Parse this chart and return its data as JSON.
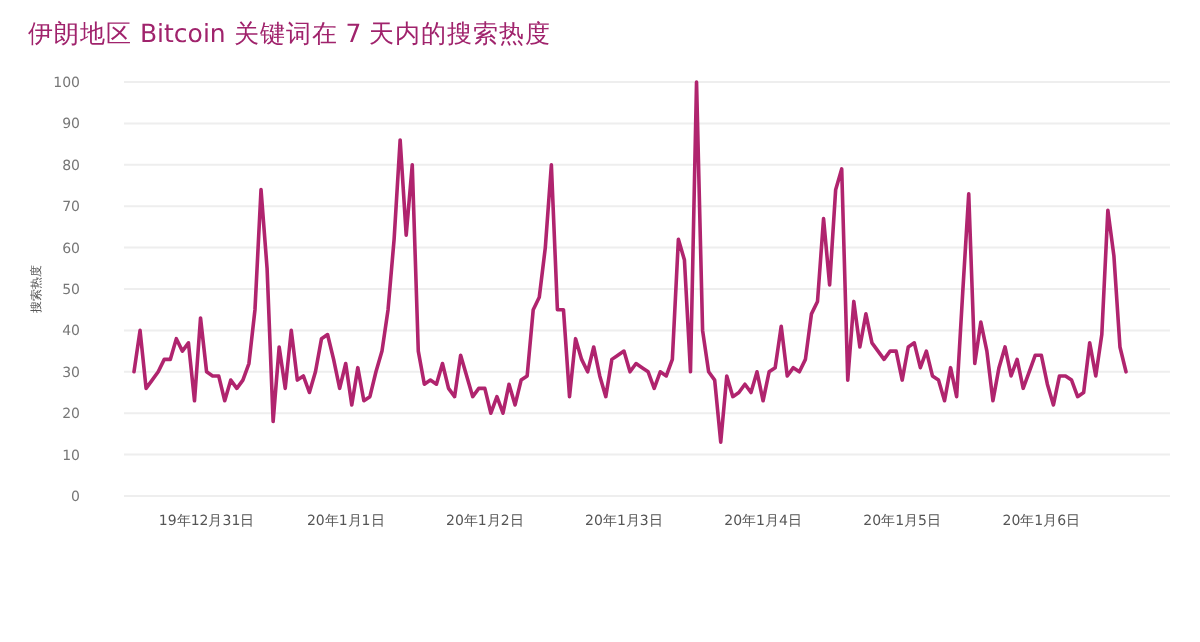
{
  "chart_data": {
    "type": "line",
    "title": "伊朗地区 Bitcoin 关键词在 7 天内的搜索热度",
    "ylabel": "搜索热度",
    "categories": [
      null,
      null,
      null,
      null,
      null,
      null,
      null,
      null,
      null,
      null,
      null,
      null,
      "19年12月31日",
      null,
      null,
      null,
      null,
      null,
      null,
      null,
      null,
      null,
      null,
      null,
      null,
      null,
      null,
      null,
      null,
      null,
      null,
      null,
      null,
      null,
      null,
      "20年1月1日",
      null,
      null,
      null,
      null,
      null,
      null,
      null,
      null,
      null,
      null,
      null,
      null,
      null,
      null,
      null,
      null,
      null,
      null,
      null,
      null,
      null,
      null,
      "20年1月2日",
      null,
      null,
      null,
      null,
      null,
      null,
      null,
      null,
      null,
      null,
      null,
      null,
      null,
      null,
      null,
      null,
      null,
      null,
      null,
      null,
      null,
      null,
      "20年1月3日",
      null,
      null,
      null,
      null,
      null,
      null,
      null,
      null,
      null,
      null,
      null,
      null,
      null,
      null,
      null,
      null,
      null,
      null,
      null,
      null,
      null,
      null,
      "20年1月4日",
      null,
      null,
      null,
      null,
      null,
      null,
      null,
      null,
      null,
      null,
      null,
      null,
      null,
      null,
      null,
      null,
      null,
      null,
      null,
      null,
      null,
      null,
      "20年1月5日",
      null,
      null,
      null,
      null,
      null,
      null,
      null,
      null,
      null,
      null,
      null,
      null,
      null,
      null,
      null,
      null,
      null,
      null,
      null,
      null,
      null,
      null,
      "20年1月6日",
      null,
      null,
      null,
      null,
      null,
      null,
      null,
      null,
      null,
      null,
      null,
      null,
      null,
      null
    ],
    "series": [
      {
        "color": "#b0246e",
        "values": [
          30,
          40,
          26,
          28,
          30,
          33,
          33,
          38,
          35,
          37,
          23,
          43,
          30,
          29,
          29,
          23,
          28,
          26,
          28,
          32,
          45,
          74,
          55,
          18,
          36,
          26,
          40,
          28,
          29,
          25,
          30,
          38,
          39,
          33,
          26,
          32,
          22,
          31,
          23,
          24,
          30,
          35,
          45,
          62,
          86,
          63,
          80,
          35,
          27,
          28,
          27,
          32,
          26,
          24,
          34,
          29,
          24,
          26,
          26,
          20,
          24,
          20,
          27,
          22,
          28,
          29,
          45,
          48,
          60,
          80,
          45,
          45,
          24,
          38,
          33,
          30,
          36,
          29,
          24,
          33,
          34,
          35,
          30,
          32,
          31,
          30,
          26,
          30,
          29,
          33,
          62,
          57,
          30,
          100,
          40,
          30,
          28,
          13,
          29,
          24,
          25,
          27,
          25,
          30,
          23,
          30,
          31,
          41,
          29,
          31,
          30,
          33,
          44,
          47,
          67,
          51,
          74,
          79,
          28,
          47,
          36,
          44,
          37,
          35,
          33,
          35,
          35,
          28,
          36,
          37,
          31,
          35,
          29,
          28,
          23,
          31,
          24,
          49,
          73,
          32,
          42,
          35,
          23,
          31,
          36,
          29,
          33,
          26,
          30,
          34,
          34,
          27,
          22,
          29,
          29,
          28,
          24,
          25,
          37,
          29,
          39,
          69,
          58,
          36,
          30
        ]
      }
    ],
    "ylim": [
      0,
      100
    ],
    "yticks": [
      0,
      10,
      20,
      30,
      40,
      50,
      60,
      70,
      80,
      90,
      100
    ],
    "grid": "y",
    "marker": "none",
    "line_style": "solid"
  }
}
